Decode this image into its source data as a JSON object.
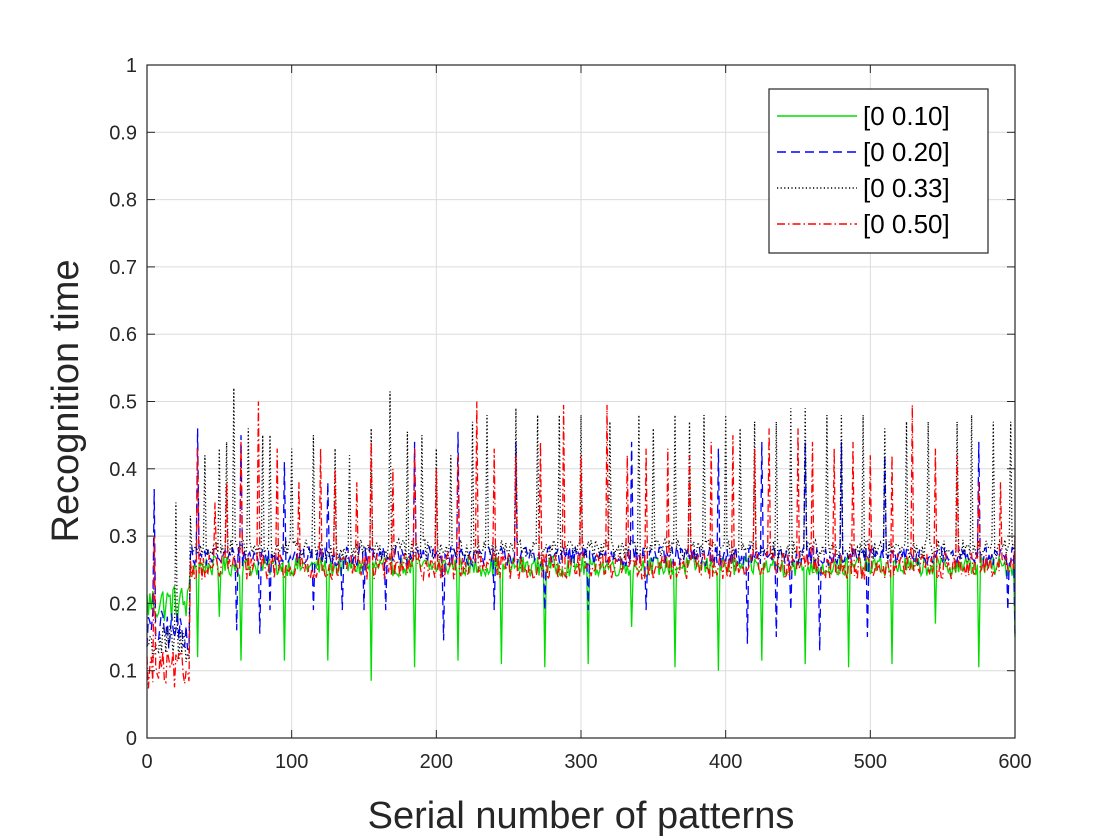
{
  "chart_data": {
    "type": "line",
    "title": "",
    "xlabel": "Serial number of patterns",
    "ylabel": "Recognition time",
    "xlim": [
      0,
      600
    ],
    "ylim": [
      0,
      1
    ],
    "xticks": [
      0,
      100,
      200,
      300,
      400,
      500,
      600
    ],
    "yticks": [
      0,
      0.1,
      0.2,
      0.3,
      0.4,
      0.5,
      0.6,
      0.7,
      0.8,
      0.9,
      1
    ],
    "grid": true,
    "legend_position": "top-right",
    "series": [
      {
        "name": "[0 0.10]",
        "color": "#00dd00",
        "style": "solid",
        "baseline": 0.255,
        "noise": 0.015,
        "early_level": 0.2,
        "spike_direction": "down",
        "spikes": [
          [
            35,
            0.12
          ],
          [
            50,
            0.18
          ],
          [
            65,
            0.115
          ],
          [
            95,
            0.115
          ],
          [
            125,
            0.115
          ],
          [
            155,
            0.085
          ],
          [
            185,
            0.105
          ],
          [
            215,
            0.115
          ],
          [
            245,
            0.11
          ],
          [
            275,
            0.105
          ],
          [
            305,
            0.11
          ],
          [
            335,
            0.165
          ],
          [
            365,
            0.105
          ],
          [
            395,
            0.1
          ],
          [
            425,
            0.115
          ],
          [
            455,
            0.11
          ],
          [
            485,
            0.105
          ],
          [
            515,
            0.11
          ],
          [
            545,
            0.17
          ],
          [
            575,
            0.105
          ],
          [
            600,
            0.15
          ]
        ]
      },
      {
        "name": "[0 0.20]",
        "color": "#0000ff",
        "style": "dashed",
        "baseline": 0.27,
        "noise": 0.015,
        "early_level": 0.16,
        "spike_direction": "mixed",
        "spikes": [
          [
            5,
            0.37
          ],
          [
            35,
            0.46
          ],
          [
            62,
            0.16
          ],
          [
            65,
            0.45
          ],
          [
            78,
            0.155
          ],
          [
            85,
            0.19
          ],
          [
            95,
            0.41
          ],
          [
            115,
            0.19
          ],
          [
            125,
            0.38
          ],
          [
            135,
            0.19
          ],
          [
            150,
            0.19
          ],
          [
            165,
            0.19
          ],
          [
            185,
            0.44
          ],
          [
            205,
            0.145
          ],
          [
            215,
            0.455
          ],
          [
            240,
            0.19
          ],
          [
            255,
            0.44
          ],
          [
            275,
            0.19
          ],
          [
            305,
            0.19
          ],
          [
            335,
            0.44
          ],
          [
            345,
            0.19
          ],
          [
            395,
            0.43
          ],
          [
            415,
            0.14
          ],
          [
            425,
            0.44
          ],
          [
            435,
            0.15
          ],
          [
            445,
            0.19
          ],
          [
            455,
            0.44
          ],
          [
            465,
            0.13
          ],
          [
            480,
            0.44
          ],
          [
            498,
            0.15
          ],
          [
            510,
            0.42
          ],
          [
            575,
            0.44
          ],
          [
            595,
            0.19
          ],
          [
            600,
            0.155
          ]
        ]
      },
      {
        "name": "[0 0.33]",
        "color": "#000000",
        "style": "dotted",
        "baseline": 0.28,
        "noise": 0.015,
        "early_level": 0.14,
        "spike_direction": "up",
        "spikes": [
          [
            20,
            0.35
          ],
          [
            30,
            0.33
          ],
          [
            40,
            0.42
          ],
          [
            50,
            0.43
          ],
          [
            55,
            0.44
          ],
          [
            60,
            0.52
          ],
          [
            70,
            0.46
          ],
          [
            80,
            0.45
          ],
          [
            85,
            0.45
          ],
          [
            100,
            0.43
          ],
          [
            115,
            0.45
          ],
          [
            130,
            0.43
          ],
          [
            140,
            0.42
          ],
          [
            155,
            0.46
          ],
          [
            168,
            0.515
          ],
          [
            180,
            0.455
          ],
          [
            190,
            0.45
          ],
          [
            200,
            0.43
          ],
          [
            210,
            0.42
          ],
          [
            225,
            0.47
          ],
          [
            235,
            0.48
          ],
          [
            255,
            0.49
          ],
          [
            270,
            0.48
          ],
          [
            285,
            0.48
          ],
          [
            300,
            0.48
          ],
          [
            320,
            0.47
          ],
          [
            340,
            0.48
          ],
          [
            350,
            0.46
          ],
          [
            365,
            0.48
          ],
          [
            375,
            0.47
          ],
          [
            385,
            0.48
          ],
          [
            400,
            0.48
          ],
          [
            410,
            0.46
          ],
          [
            420,
            0.47
          ],
          [
            435,
            0.47
          ],
          [
            445,
            0.49
          ],
          [
            455,
            0.49
          ],
          [
            470,
            0.48
          ],
          [
            480,
            0.48
          ],
          [
            495,
            0.48
          ],
          [
            510,
            0.46
          ],
          [
            525,
            0.47
          ],
          [
            540,
            0.47
          ],
          [
            560,
            0.47
          ],
          [
            570,
            0.48
          ],
          [
            585,
            0.47
          ],
          [
            597,
            0.47
          ]
        ]
      },
      {
        "name": "[0 0.50]",
        "color": "#ff0000",
        "style": "dashdot",
        "baseline": 0.255,
        "noise": 0.02,
        "early_level": 0.1,
        "spike_direction": "up",
        "spikes": [
          [
            5,
            0.3
          ],
          [
            35,
            0.43
          ],
          [
            47,
            0.35
          ],
          [
            55,
            0.38
          ],
          [
            65,
            0.44
          ],
          [
            77,
            0.5
          ],
          [
            90,
            0.43
          ],
          [
            105,
            0.38
          ],
          [
            120,
            0.43
          ],
          [
            130,
            0.4
          ],
          [
            145,
            0.38
          ],
          [
            155,
            0.44
          ],
          [
            170,
            0.4
          ],
          [
            185,
            0.43
          ],
          [
            200,
            0.4
          ],
          [
            215,
            0.42
          ],
          [
            228,
            0.5
          ],
          [
            240,
            0.43
          ],
          [
            255,
            0.42
          ],
          [
            272,
            0.44
          ],
          [
            288,
            0.495
          ],
          [
            300,
            0.42
          ],
          [
            318,
            0.495
          ],
          [
            332,
            0.42
          ],
          [
            345,
            0.43
          ],
          [
            360,
            0.43
          ],
          [
            375,
            0.42
          ],
          [
            390,
            0.44
          ],
          [
            405,
            0.45
          ],
          [
            420,
            0.43
          ],
          [
            430,
            0.46
          ],
          [
            450,
            0.46
          ],
          [
            460,
            0.44
          ],
          [
            475,
            0.43
          ],
          [
            488,
            0.44
          ],
          [
            500,
            0.42
          ],
          [
            515,
            0.42
          ],
          [
            529,
            0.495
          ],
          [
            545,
            0.43
          ],
          [
            560,
            0.42
          ],
          [
            575,
            0.38
          ],
          [
            590,
            0.38
          ],
          [
            600,
            0.3
          ]
        ]
      }
    ]
  }
}
